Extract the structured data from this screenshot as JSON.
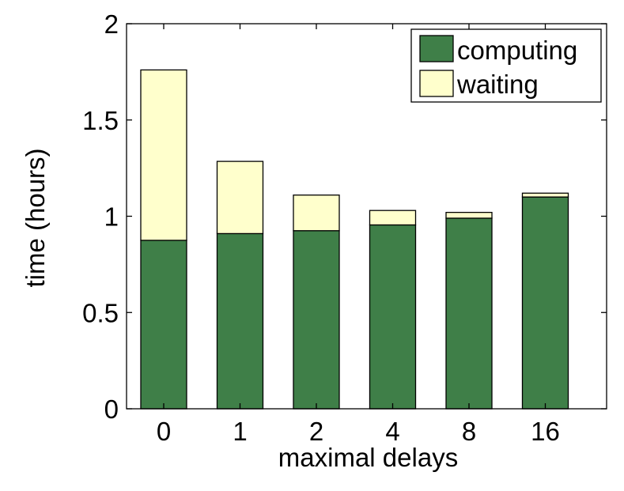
{
  "chart_data": {
    "type": "bar",
    "stacked": true,
    "categories": [
      "0",
      "1",
      "2",
      "4",
      "8",
      "16"
    ],
    "series": [
      {
        "name": "computing",
        "color": "#3f7f48",
        "values": [
          0.875,
          0.91,
          0.925,
          0.955,
          0.99,
          1.1
        ]
      },
      {
        "name": "waiting",
        "color": "#ffffcc",
        "values": [
          0.885,
          0.375,
          0.185,
          0.075,
          0.03,
          0.02
        ]
      }
    ],
    "title": "",
    "xlabel": "maximal delays",
    "ylabel": "time (hours)",
    "ylim": [
      0,
      2
    ],
    "yticks": [
      "0",
      "0.5",
      "1",
      "1.5",
      "2"
    ],
    "grid": false,
    "legend_position": "top-right"
  }
}
